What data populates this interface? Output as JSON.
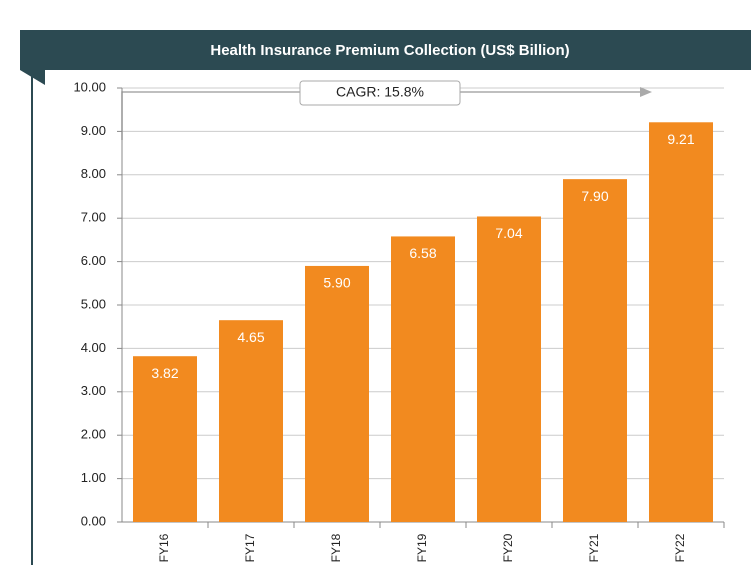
{
  "chart_data": {
    "type": "bar",
    "title": "Health Insurance Premium Collection (US$ Billion)",
    "annotation": "CAGR: 15.8%",
    "categories": [
      "FY16",
      "FY17",
      "FY18",
      "FY19",
      "FY20",
      "FY21",
      "FY22"
    ],
    "values": [
      3.82,
      4.65,
      5.9,
      6.58,
      7.04,
      7.9,
      9.21
    ],
    "value_labels": [
      "3.82",
      "4.65",
      "5.90",
      "6.58",
      "7.04",
      "7.90",
      "9.21"
    ],
    "color": "#f28a1f",
    "ylim": [
      0,
      10
    ],
    "yticks": [
      {
        "value": 0,
        "label": "0.00"
      },
      {
        "value": 1,
        "label": "1.00"
      },
      {
        "value": 2,
        "label": "2.00"
      },
      {
        "value": 3,
        "label": "3.00"
      },
      {
        "value": 4,
        "label": "4.00"
      },
      {
        "value": 5,
        "label": "5.00"
      },
      {
        "value": 6,
        "label": "6.00"
      },
      {
        "value": 7,
        "label": "7.00"
      },
      {
        "value": 8,
        "label": "8.00"
      },
      {
        "value": 9,
        "label": "9.00"
      },
      {
        "value": 10,
        "label": "10.00"
      }
    ],
    "grid": true
  }
}
